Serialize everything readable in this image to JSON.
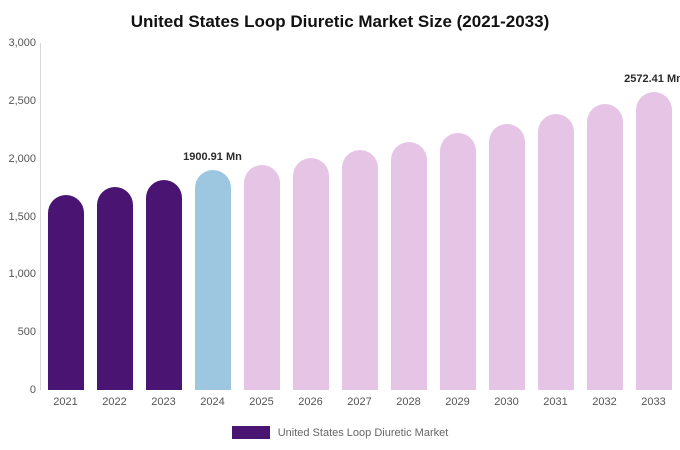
{
  "chart_data": {
    "type": "bar",
    "title": "United States Loop Diuretic Market Size (2021-2033)",
    "categories": [
      "2021",
      "2022",
      "2023",
      "2024",
      "2025",
      "2026",
      "2027",
      "2028",
      "2029",
      "2030",
      "2031",
      "2032",
      "2033"
    ],
    "values": [
      1690,
      1755,
      1815,
      1900.91,
      1945,
      2010,
      2075,
      2145,
      2220,
      2300,
      2385,
      2475,
      2572.41
    ],
    "unit": "Mn",
    "ylim": [
      0,
      3000
    ],
    "yticks": [
      "3,000",
      "2,500",
      "2,000",
      "1,500",
      "1,000",
      "500",
      "0"
    ],
    "grid": false,
    "bar_colors": [
      "#4a1473",
      "#4a1473",
      "#4a1473",
      "#9dc7e0",
      "#e6c4e6",
      "#e6c4e6",
      "#e6c4e6",
      "#e6c4e6",
      "#e6c4e6",
      "#e6c4e6",
      "#e6c4e6",
      "#e6c4e6",
      "#e6c4e6"
    ],
    "annotations": [
      {
        "category": "2024",
        "text": "1900.91 Mn"
      },
      {
        "category": "2033",
        "text": "2572.41 Mn"
      }
    ],
    "legend": {
      "label": "United States Loop Diuretic Market",
      "color": "#4a1473",
      "position": "bottom"
    }
  }
}
